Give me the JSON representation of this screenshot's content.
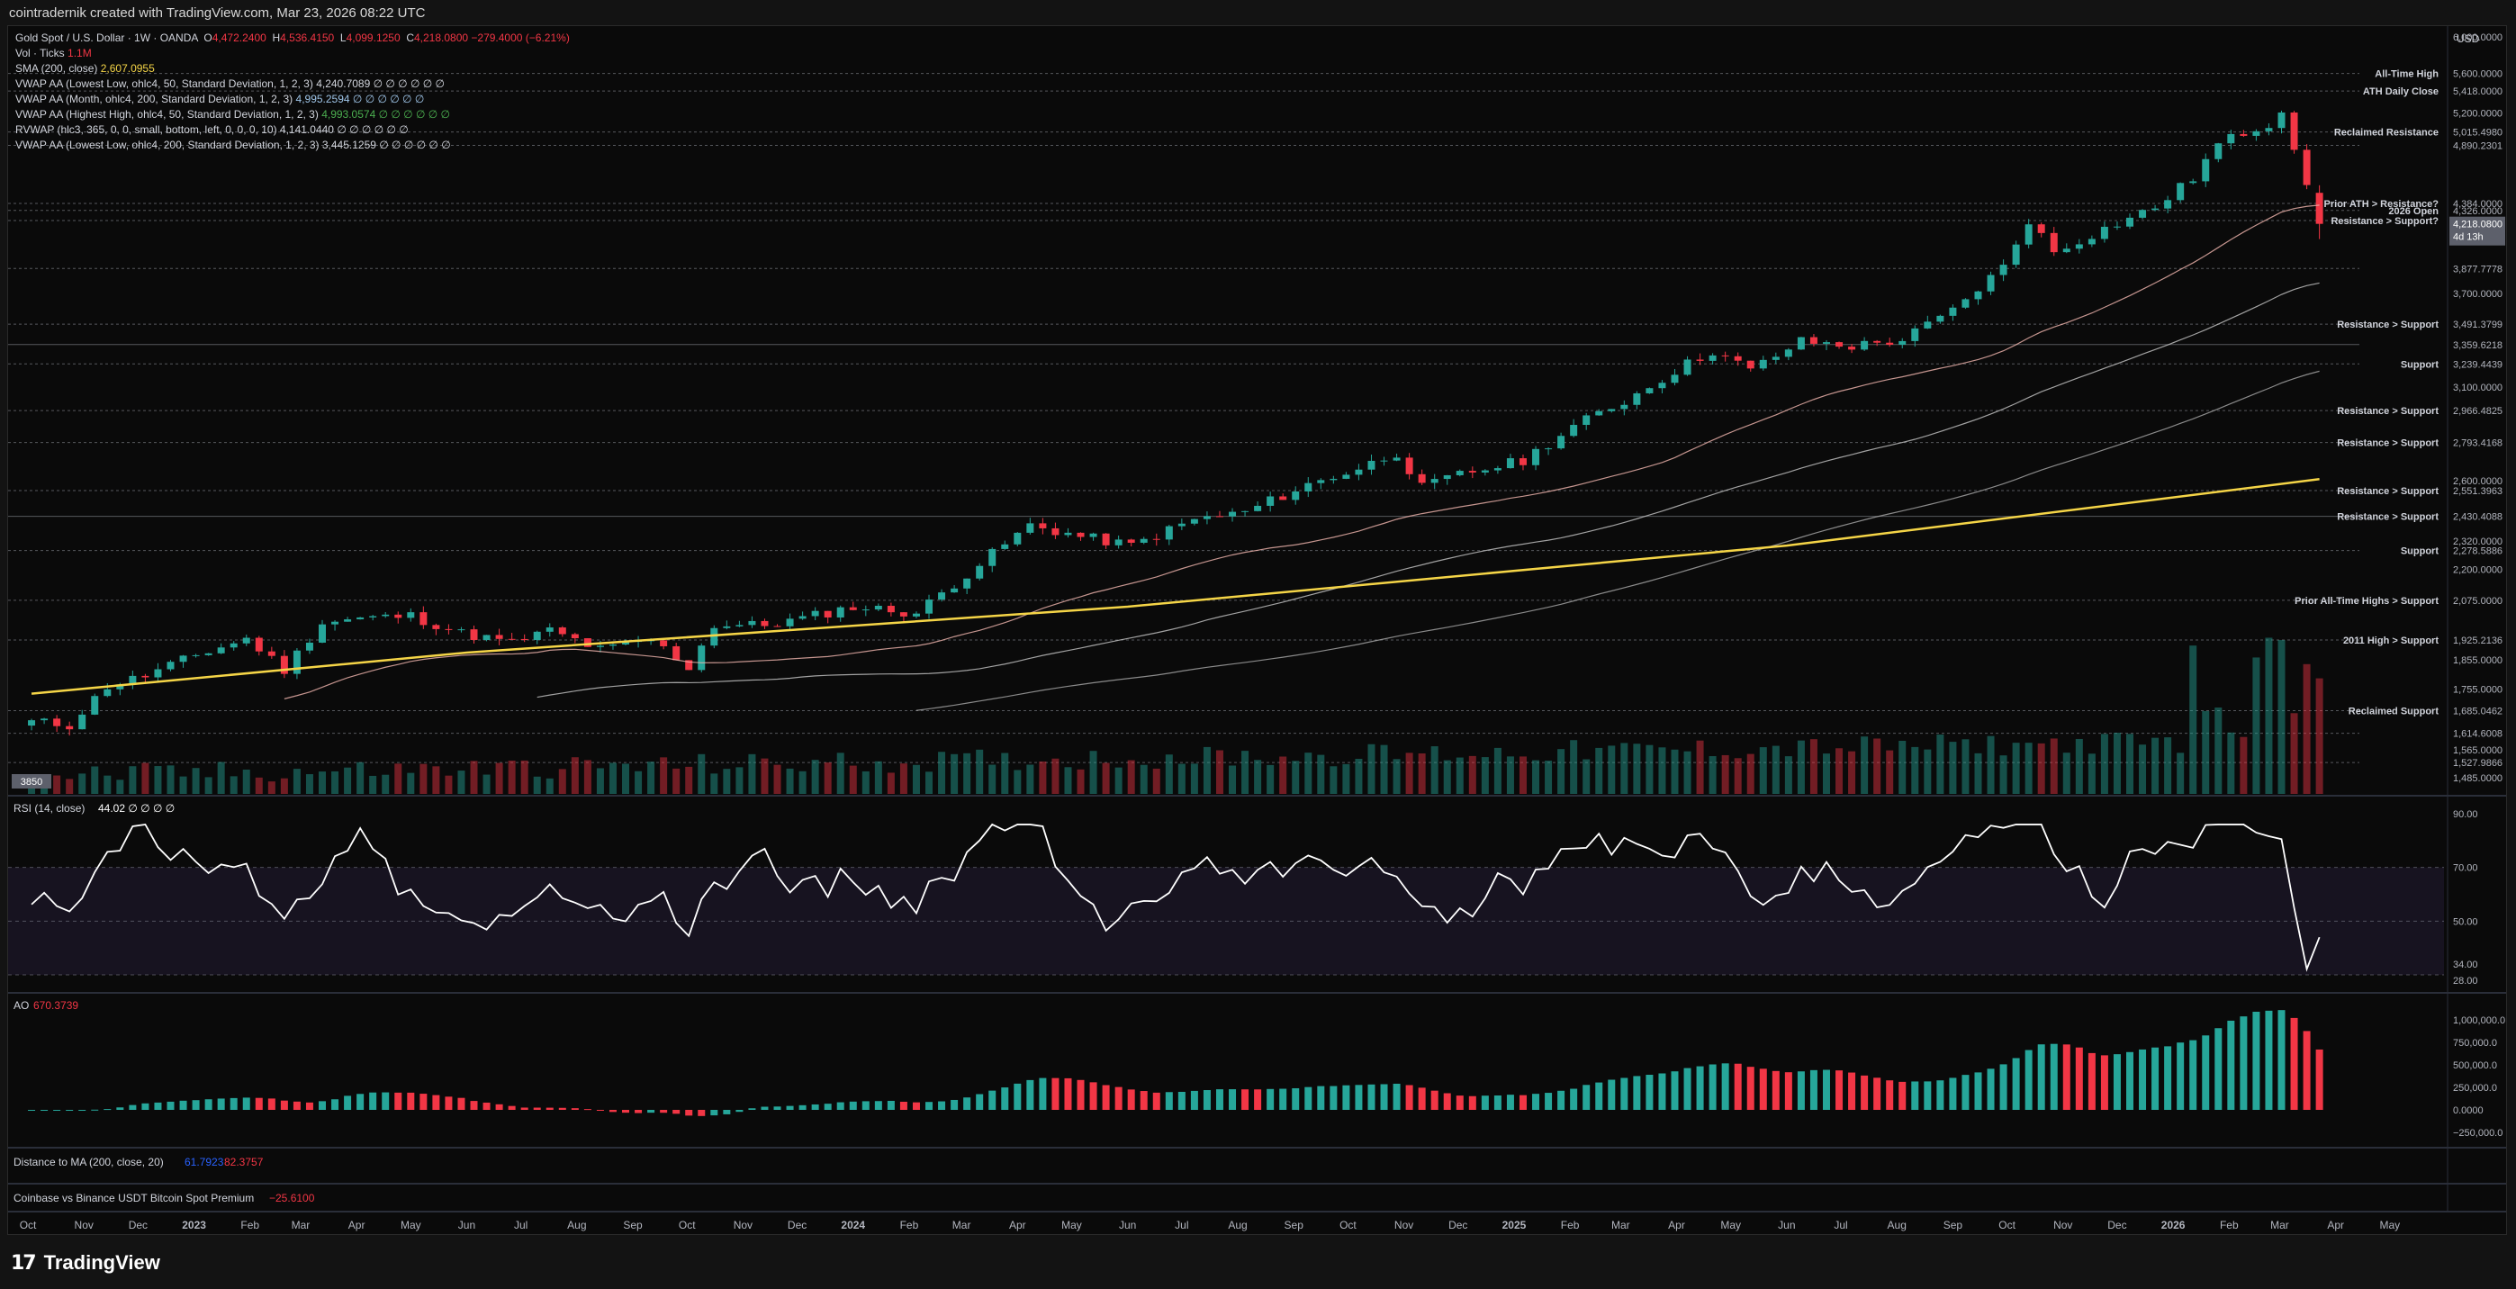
{
  "header": {
    "creator_line": "cointradernik created with TradingView.com, Mar 23, 2026 08:22 UTC"
  },
  "legend": {
    "symbol": "Gold Spot / U.S. Dollar · 1W · OANDA",
    "open": "4,472.2400",
    "high": "4,536.4150",
    "low": "4,099.1250",
    "close": "4,218.0800",
    "change": "−279.4000 (−6.21%)",
    "lines": [
      {
        "label": "Vol · Ticks",
        "value": "1.1M",
        "color": "#f23645"
      },
      {
        "label": "SMA (200, close)",
        "value": "2,607.0955",
        "color": "#f5d547"
      },
      {
        "label": "VWAP AA (Lowest Low, ohlc4, 50, Standard Deviation, 1, 2, 3)",
        "value": "4,240.7089 ∅ ∅ ∅ ∅ ∅ ∅",
        "color": "#d1d4dc"
      },
      {
        "label": "VWAP AA (Month, ohlc4, 200, Standard Deviation, 1, 2, 3)",
        "value": "4,995.2594 ∅ ∅ ∅ ∅ ∅ ∅",
        "color": "#9fc5e8"
      },
      {
        "label": "VWAP AA (Highest High, ohlc4, 50, Standard Deviation, 1, 2, 3)",
        "value": "4,993.0574 ∅ ∅ ∅ ∅ ∅ ∅",
        "color": "#4caf50"
      },
      {
        "label": "RVWAP (hlc3, 365, 0, 0, small, bottom, left, 0, 0, 0, 10)",
        "value": "4,141.0440 ∅ ∅ ∅ ∅ ∅ ∅",
        "color": "#d1d4dc"
      },
      {
        "label": "VWAP AA (Lowest Low, ohlc4, 200, Standard Deviation, 1, 2, 3)",
        "value": "3,445.1259 ∅ ∅ ∅ ∅ ∅ ∅",
        "color": "#d1d4dc"
      }
    ]
  },
  "price_axis": {
    "currency": "USD",
    "ticks": [
      "6,000.0000",
      "5,600.0000",
      "5,418.0000",
      "5,200.0000",
      "5,015.4980",
      "4,890.2301",
      "4,384.0000",
      "4,326.0000",
      "4,245.0000",
      "4,218.0800",
      "3,877.7778",
      "3,700.0000",
      "3,491.3799",
      "3,359.6218",
      "3,239.4439",
      "3,100.0000",
      "2,966.4825",
      "2,793.4168",
      "2,600.0000",
      "2,551.3963",
      "2,430.4088",
      "2,320.0000",
      "2,278.5886",
      "2,200.0000",
      "2,075.0000",
      "1,925.2136",
      "1,855.0000",
      "1,755.0000",
      "1,685.0462",
      "1,614.6008",
      "1,565.0000",
      "1,527.9866",
      "1,485.0000"
    ],
    "countdown": "4d 13h"
  },
  "annotations": [
    {
      "text": "All-Time High",
      "price": 5600
    },
    {
      "text": "ATH Daily Close",
      "price": 5418
    },
    {
      "text": "Reclaimed Resistance",
      "price": 5015.498
    },
    {
      "text": "Prior ATH > Resistance?",
      "price": 4384
    },
    {
      "text": "2026 Open",
      "price": 4326
    },
    {
      "text": "Resistance > Support?",
      "price": 4245
    },
    {
      "text": "Resistance > Support",
      "price": 3491.3799
    },
    {
      "text": "Support",
      "price": 3239.4439
    },
    {
      "text": "Resistance > Support",
      "price": 2966.4825
    },
    {
      "text": "Resistance > Support",
      "price": 2793.4168
    },
    {
      "text": "Resistance > Support",
      "price": 2551.3963
    },
    {
      "text": "Resistance > Support",
      "price": 2430.4088
    },
    {
      "text": "Support",
      "price": 2278.5886
    },
    {
      "text": "Prior All-Time Highs > Support",
      "price": 2075
    },
    {
      "text": "2011 High > Support",
      "price": 1925.2136
    },
    {
      "text": "Reclaimed Support",
      "price": 1685.0462
    }
  ],
  "volume_label": "3850",
  "rsi": {
    "title": "RSI (14, close)",
    "value": "44.02 ∅ ∅ ∅ ∅",
    "ticks": [
      "90.00",
      "70.00",
      "50.00",
      "34.00",
      "28.00"
    ]
  },
  "ao": {
    "title": "AO",
    "value": "670.3739",
    "ticks": [
      "1,000,000.0",
      "750,000.0",
      "500,000.0",
      "250,000.0",
      "0.0000",
      "−250,000.0"
    ]
  },
  "pane4": {
    "title": "Distance to MA (200, close, 20)",
    "v1": "61.7923",
    "v2": "82.3757"
  },
  "pane5": {
    "title": "Coinbase vs Binance USDT Bitcoin Spot Premium",
    "value": "−25.6100"
  },
  "time_axis": [
    "Oct",
    "Nov",
    "Dec",
    "2023",
    "Feb",
    "Mar",
    "Apr",
    "May",
    "Jun",
    "Jul",
    "Aug",
    "Sep",
    "Oct",
    "Nov",
    "Dec",
    "2024",
    "Feb",
    "Mar",
    "Apr",
    "May",
    "Jun",
    "Jul",
    "Aug",
    "Sep",
    "Oct",
    "Nov",
    "Dec",
    "2025",
    "Feb",
    "Mar",
    "Apr",
    "May",
    "Jun",
    "Jul",
    "Aug",
    "Sep",
    "Oct",
    "Nov",
    "Dec",
    "2026",
    "Feb",
    "Mar",
    "Apr",
    "May"
  ],
  "footer": {
    "brand": "TradingView"
  },
  "colors": {
    "up": "#26a69a",
    "down": "#f23645",
    "sma": "#f5d547",
    "rsi": "#ffffff",
    "ao_up": "#26a69a",
    "ao_down": "#f23645"
  },
  "chart_data": {
    "type": "candlestick",
    "title": "Gold Spot / U.S. Dollar · 1W · OANDA",
    "ylim": [
      1485,
      6000
    ],
    "scale": "log",
    "anchors": {
      "weekly_close_path": [
        [
          "2022-10-03",
          1650
        ],
        [
          "2022-10-24",
          1640
        ],
        [
          "2022-11-14",
          1765
        ],
        [
          "2022-12-05",
          1800
        ],
        [
          "2023-01-02",
          1870
        ],
        [
          "2023-01-30",
          1930
        ],
        [
          "2023-02-20",
          1820
        ],
        [
          "2023-03-13",
          1990
        ],
        [
          "2023-04-03",
          2005
        ],
        [
          "2023-05-01",
          2015
        ],
        [
          "2023-05-29",
          1950
        ],
        [
          "2023-06-26",
          1915
        ],
        [
          "2023-07-17",
          1960
        ],
        [
          "2023-08-14",
          1890
        ],
        [
          "2023-09-11",
          1925
        ],
        [
          "2023-10-02",
          1830
        ],
        [
          "2023-10-16",
          1980
        ],
        [
          "2023-11-13",
          1980
        ],
        [
          "2023-12-04",
          2005
        ],
        [
          "2024-01-01",
          2050
        ],
        [
          "2024-02-05",
          2025
        ],
        [
          "2024-03-04",
          2180
        ],
        [
          "2024-04-08",
          2390
        ],
        [
          "2024-05-06",
          2340
        ],
        [
          "2024-06-03",
          2300
        ],
        [
          "2024-07-08",
          2415
        ],
        [
          "2024-08-05",
          2450
        ],
        [
          "2024-09-09",
          2580
        ],
        [
          "2024-10-07",
          2660
        ],
        [
          "2024-10-28",
          2740
        ],
        [
          "2024-11-11",
          2565
        ],
        [
          "2024-12-02",
          2630
        ],
        [
          "2025-01-06",
          2700
        ],
        [
          "2025-02-03",
          2880
        ],
        [
          "2025-03-03",
          3020
        ],
        [
          "2025-04-07",
          3240
        ],
        [
          "2025-04-21",
          3320
        ],
        [
          "2025-05-12",
          3200
        ],
        [
          "2025-06-09",
          3380
        ],
        [
          "2025-07-07",
          3350
        ],
        [
          "2025-08-04",
          3390
        ],
        [
          "2025-09-01",
          3580
        ],
        [
          "2025-09-29",
          3890
        ],
        [
          "2025-10-13",
          4250
        ],
        [
          "2025-10-27",
          4000
        ],
        [
          "2025-11-24",
          4180
        ],
        [
          "2025-12-22",
          4350
        ],
        [
          "2026-01-12",
          4600
        ],
        [
          "2026-01-26",
          4900
        ],
        [
          "2026-02-09",
          5010
        ],
        [
          "2026-02-23",
          5100
        ],
        [
          "2026-03-02",
          5230
        ],
        [
          "2026-03-09",
          4890
        ],
        [
          "2026-03-16",
          4496
        ],
        [
          "2026-03-23",
          4218.08
        ]
      ],
      "sma200": [
        [
          "2022-10-03",
          1740
        ],
        [
          "2023-06-01",
          1880
        ],
        [
          "2024-06-01",
          2050
        ],
        [
          "2025-06-01",
          2300
        ],
        [
          "2026-03-23",
          2607.0955
        ]
      ]
    },
    "current": {
      "open": 4472.24,
      "high": 4536.415,
      "low": 4099.125,
      "close": 4218.08,
      "change": -279.4,
      "change_pct": -6.21
    },
    "rsi_current": 44.02,
    "ao_current": 670.3739,
    "levels": [
      5600,
      5418,
      5015.498,
      4890.2301,
      4384,
      4326,
      4245,
      3877.7778,
      3491.3799,
      3359.6218,
      3239.4439,
      2966.4825,
      2793.4168,
      2551.3963,
      2430.4088,
      2278.5886,
      2075,
      1925.2136,
      1685.0462,
      1614.6008,
      1527.9866
    ]
  }
}
